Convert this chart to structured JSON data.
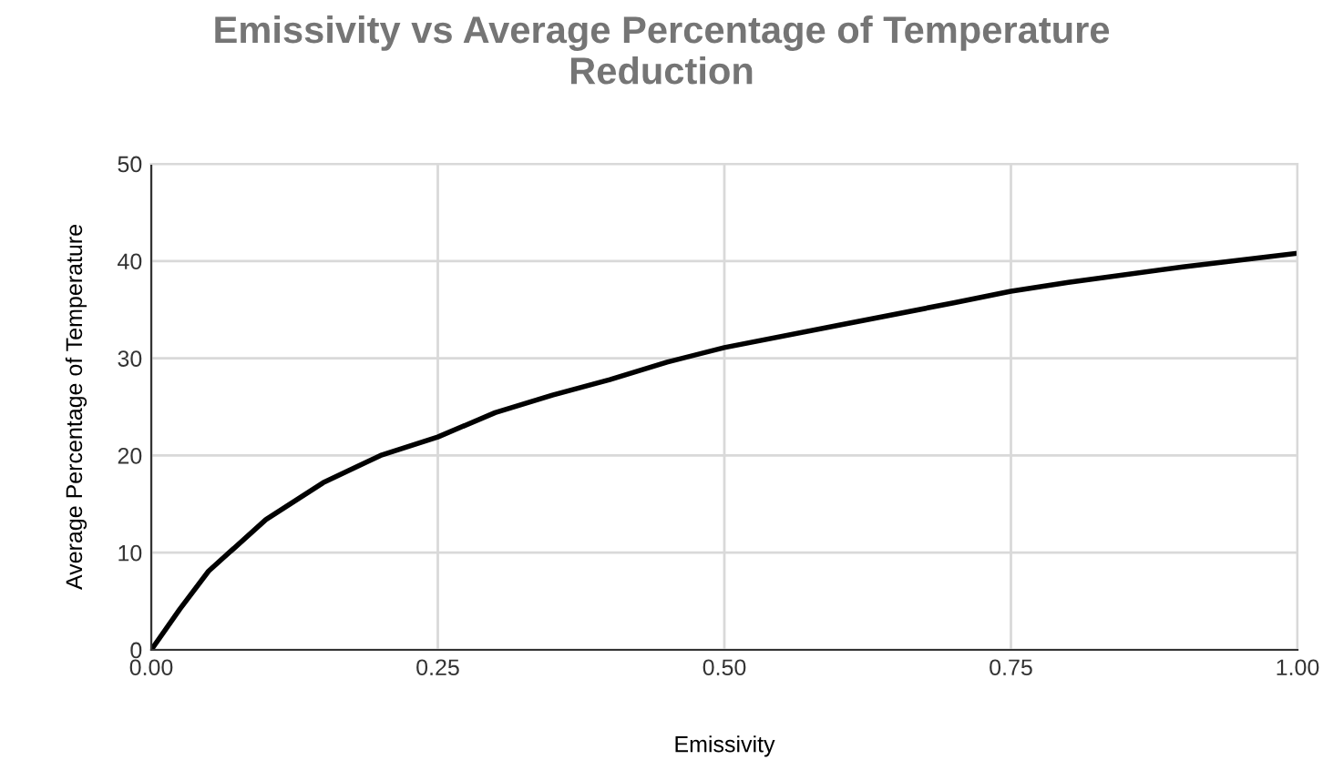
{
  "chart_data": {
    "type": "line",
    "title": "Emissivity vs Average Percentage of Temperature\nReduction",
    "xlabel": "Emissivity",
    "ylabel": "Average Percentage of Temperature",
    "x": [
      0,
      0.025,
      0.05,
      0.1,
      0.15,
      0.2,
      0.25,
      0.3,
      0.35,
      0.4,
      0.45,
      0.5,
      0.6,
      0.7,
      0.75,
      0.8,
      0.9,
      1.0
    ],
    "series": [
      {
        "color": "#000000",
        "values": [
          0,
          4.2,
          8.1,
          13.4,
          17.2,
          20,
          21.9,
          24.4,
          26.2,
          27.8,
          29.6,
          31.1,
          33.4,
          35.7,
          36.9,
          37.8,
          39.4,
          40.8
        ]
      }
    ],
    "xlim": [
      0,
      1
    ],
    "ylim": [
      0,
      50
    ],
    "xticks": [
      {
        "value": 0,
        "label": "0.00"
      },
      {
        "value": 0.25,
        "label": "0.25"
      },
      {
        "value": 0.5,
        "label": "0.50"
      },
      {
        "value": 0.75,
        "label": "0.75"
      },
      {
        "value": 1,
        "label": "1.00"
      }
    ],
    "yticks": [
      0,
      10,
      20,
      30,
      40,
      50
    ],
    "grid": true,
    "marker": "none",
    "line_style": "solid"
  }
}
